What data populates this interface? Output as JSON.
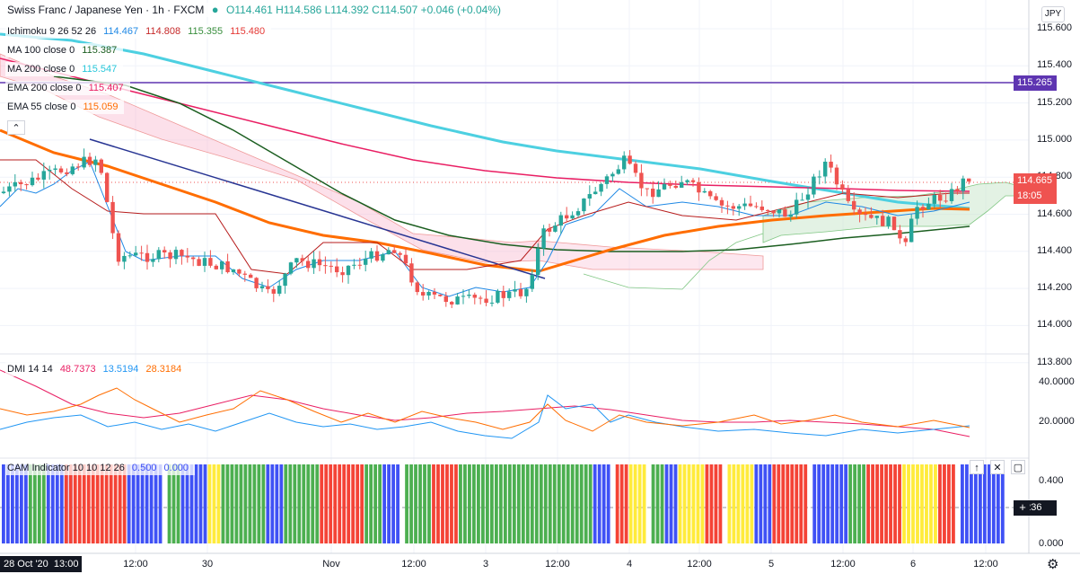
{
  "header": {
    "title": "Swiss Franc / Japanese Yen · 1h · FXCM",
    "ohlc": "O114.461 H114.586 L114.392 C114.507 +0.046 (+0.04%)"
  },
  "currency_badge": "JPY",
  "indicators": [
    {
      "label": "Ichimoku 9 26 52 26",
      "values": [
        "114.467",
        "114.808",
        "115.355",
        "115.480"
      ],
      "colors": [
        "#1e88e5",
        "#c62828",
        "#388e3c",
        "#e53935"
      ]
    },
    {
      "label": "MA 100 close 0",
      "values": [
        "115.387"
      ],
      "colors": [
        "#1b5e20"
      ]
    },
    {
      "label": "MA 200 close 0",
      "values": [
        "115.547"
      ],
      "colors": [
        "#4dd0e1"
      ]
    },
    {
      "label": "EMA 200 close 0",
      "values": [
        "115.407"
      ],
      "colors": [
        "#e91e63"
      ]
    },
    {
      "label": "EMA 55 close 0",
      "values": [
        "115.059"
      ],
      "colors": [
        "#ff6d00"
      ]
    }
  ],
  "price_axis": [
    "115.600",
    "115.400",
    "115.200",
    "115.000",
    "114.800",
    "114.600",
    "114.400",
    "114.200",
    "114.000",
    "113.800"
  ],
  "price_tags": {
    "line_level": "115.265",
    "last_price": "114.665",
    "countdown": "18:05",
    "cam_value": "0.236"
  },
  "dmi": {
    "label": "DMI 14 14",
    "values": [
      "48.7373",
      "13.5194",
      "28.3184"
    ],
    "colors": [
      "#e91e63",
      "#2196f3",
      "#ff6d00"
    ],
    "axis": [
      "40.0000",
      "20.0000"
    ]
  },
  "cam": {
    "label": "CAM Indicator 10 10 12 26",
    "values": [
      "0.500",
      "0.000"
    ],
    "axis": [
      "0.400",
      "0.200",
      "0.000"
    ]
  },
  "time_axis": {
    "current": "28 Oct '20  13:00",
    "labels": [
      "12:00",
      "30",
      "Nov",
      "12:00",
      "3",
      "12:00",
      "4",
      "12:00",
      "5",
      "12:00",
      "6",
      "12:00"
    ]
  },
  "colors": {
    "up": "#26a69a",
    "down": "#ef5350",
    "ma100": "#1b5e20",
    "ma200": "#4dd0e1",
    "ema200": "#e91e63",
    "ema55": "#ff6d00",
    "trendline": "#283593",
    "level_line": "#5e35b1"
  },
  "chart_data": [
    {
      "type": "candlestick",
      "title": "Swiss Franc / Japanese Yen · 1h · FXCM",
      "x": [
        "28 Oct 13:00",
        "29 Oct 12:00",
        "30 Oct",
        "Nov",
        "2 Nov 12:00",
        "3 Nov",
        "3 Nov 12:00",
        "4 Nov",
        "4 Nov 12:00",
        "5 Nov",
        "5 Nov 12:00",
        "6 Nov",
        "6 Nov 12:00"
      ],
      "close": [
        114.55,
        114.75,
        114.15,
        114.0,
        114.15,
        113.95,
        114.4,
        114.7,
        114.55,
        114.45,
        114.4,
        114.55,
        114.66
      ],
      "ylim": [
        113.7,
        115.7
      ],
      "series": [
        {
          "name": "MA 200 close 0",
          "values": [
            115.55,
            115.35,
            115.05,
            114.85,
            114.75,
            114.72,
            114.7,
            114.7,
            114.68,
            114.62,
            114.55,
            114.52,
            114.49
          ]
        },
        {
          "name": "EMA 200 close 0",
          "values": [
            115.45,
            115.25,
            114.98,
            114.88,
            114.8,
            114.74,
            114.7,
            114.68,
            114.66,
            114.65,
            114.63,
            114.62,
            114.62
          ]
        },
        {
          "name": "MA 100 close 0",
          "values": [
            115.4,
            115.1,
            114.7,
            114.48,
            114.35,
            114.27,
            114.25,
            114.24,
            114.23,
            114.25,
            114.32,
            114.36,
            114.38
          ]
        },
        {
          "name": "EMA 55 close 0",
          "values": [
            115.06,
            114.75,
            114.4,
            114.33,
            114.25,
            114.15,
            114.2,
            114.4,
            114.45,
            114.47,
            114.48,
            114.49,
            114.5
          ]
        }
      ]
    },
    {
      "type": "line",
      "title": "DMI 14 14",
      "ylim": [
        0,
        55
      ],
      "series": [
        {
          "name": "+DI",
          "values": [
            48.7,
            30,
            22,
            33,
            20,
            17,
            25,
            30,
            23,
            18,
            16,
            15,
            13.5
          ]
        },
        {
          "name": "-DI",
          "values": [
            13.5,
            18,
            26,
            18,
            15,
            13,
            30,
            25,
            20,
            16,
            18,
            15,
            18
          ]
        },
        {
          "name": "ADX",
          "values": [
            28.3,
            35,
            20,
            38,
            25,
            20,
            18,
            25,
            19,
            24,
            22,
            17,
            20
          ]
        }
      ]
    },
    {
      "type": "bar",
      "title": "CAM Indicator 10 10 12 26",
      "ylim": [
        0,
        0.5
      ],
      "values": [
        0.5
      ],
      "colors": [
        "#3f51f5",
        "#f44336",
        "#4caf50",
        "#ffeb3b"
      ]
    }
  ]
}
